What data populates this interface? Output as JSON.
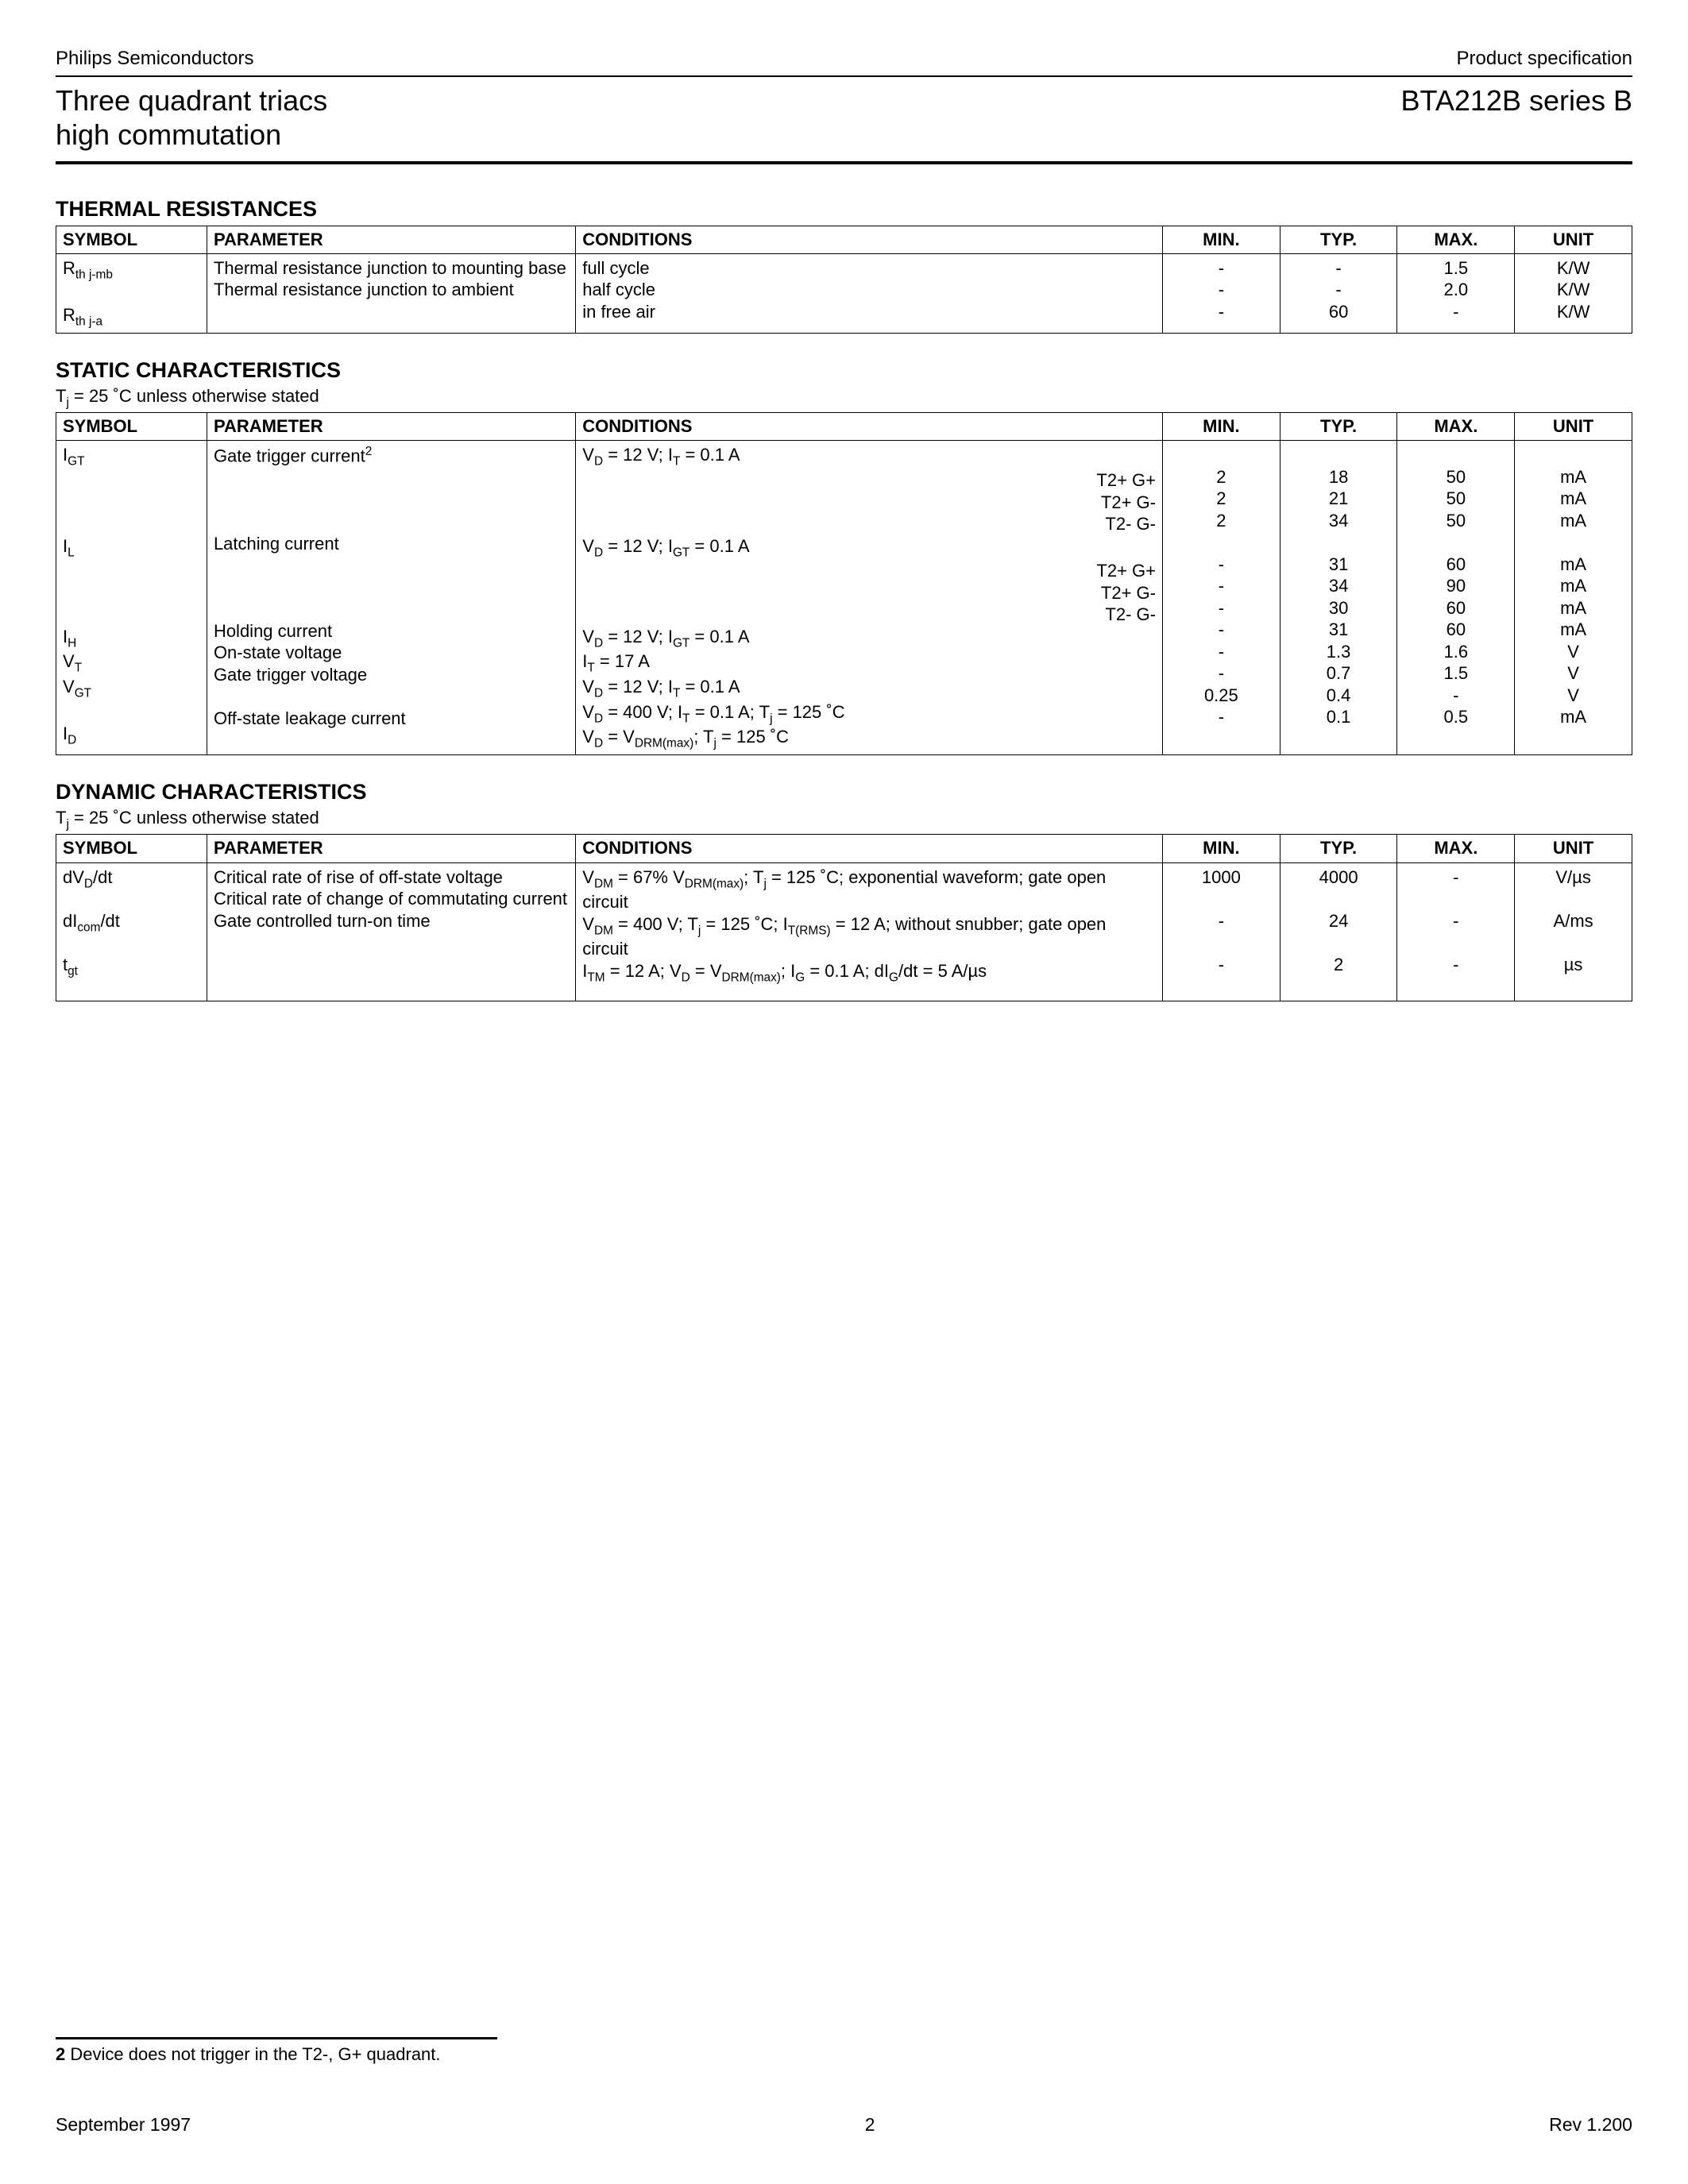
{
  "header": {
    "company": "Philips Semiconductors",
    "doctype": "Product specification",
    "title_line1": "Three quadrant triacs",
    "title_line2": "high commutation",
    "product": "BTA212B series B"
  },
  "sections": {
    "thermal": {
      "title": "THERMAL RESISTANCES",
      "headers": [
        "SYMBOL",
        "PARAMETER",
        "CONDITIONS",
        "MIN.",
        "TYP.",
        "MAX.",
        "UNIT"
      ],
      "rows": [
        {
          "sym_html": "R<sub>th j-mb</sub>",
          "param": "Thermal resistance junction to mounting base",
          "cond": "full cycle",
          "min": "-",
          "typ": "-",
          "max": "1.5",
          "unit": "K/W"
        },
        {
          "sym_html": "",
          "param": "",
          "cond": "half cycle",
          "min": "-",
          "typ": "-",
          "max": "2.0",
          "unit": "K/W"
        },
        {
          "sym_html": "R<sub>th j-a</sub>",
          "param": "Thermal resistance junction to ambient",
          "cond": "in free air",
          "min": "-",
          "typ": "60",
          "max": "-",
          "unit": "K/W"
        }
      ]
    },
    "static": {
      "title": "STATIC CHARACTERISTICS",
      "subnote_html": "T<sub>j</sub> = 25 ˚C unless otherwise stated",
      "headers": [
        "SYMBOL",
        "PARAMETER",
        "CONDITIONS",
        "MIN.",
        "TYP.",
        "MAX.",
        "UNIT"
      ],
      "rows": [
        {
          "sym_html": "I<sub>GT</sub>",
          "param_html": "Gate trigger current<sup>2</sup>",
          "cond_left_html": "V<sub>D</sub> = 12 V; I<sub>T</sub> = 0.1 A",
          "cond_right": "",
          "min": "",
          "typ": "",
          "max": "",
          "unit": ""
        },
        {
          "sym_html": "",
          "param_html": "",
          "cond_left_html": "",
          "cond_right": "T2+ G+",
          "min": "2",
          "typ": "18",
          "max": "50",
          "unit": "mA"
        },
        {
          "sym_html": "",
          "param_html": "",
          "cond_left_html": "",
          "cond_right": "T2+ G-",
          "min": "2",
          "typ": "21",
          "max": "50",
          "unit": "mA"
        },
        {
          "sym_html": "",
          "param_html": "",
          "cond_left_html": "",
          "cond_right": "T2- G-",
          "min": "2",
          "typ": "34",
          "max": "50",
          "unit": "mA"
        },
        {
          "sym_html": "I<sub>L</sub>",
          "param_html": "Latching current",
          "cond_left_html": "V<sub>D</sub> = 12 V; I<sub>GT</sub> = 0.1 A",
          "cond_right": "",
          "min": "",
          "typ": "",
          "max": "",
          "unit": ""
        },
        {
          "sym_html": "",
          "param_html": "",
          "cond_left_html": "",
          "cond_right": "T2+ G+",
          "min": "-",
          "typ": "31",
          "max": "60",
          "unit": "mA"
        },
        {
          "sym_html": "",
          "param_html": "",
          "cond_left_html": "",
          "cond_right": "T2+ G-",
          "min": "-",
          "typ": "34",
          "max": "90",
          "unit": "mA"
        },
        {
          "sym_html": "",
          "param_html": "",
          "cond_left_html": "",
          "cond_right": "T2- G-",
          "min": "-",
          "typ": "30",
          "max": "60",
          "unit": "mA"
        },
        {
          "sym_html": "I<sub>H</sub>",
          "param_html": "Holding current",
          "cond_left_html": "V<sub>D</sub> = 12 V; I<sub>GT</sub> = 0.1 A",
          "cond_right": "",
          "min": "-",
          "typ": "31",
          "max": "60",
          "unit": "mA"
        },
        {
          "sym_html": "V<sub>T</sub>",
          "param_html": "On-state voltage",
          "cond_left_html": "I<sub>T</sub> = 17 A",
          "cond_right": "",
          "min": "-",
          "typ": "1.3",
          "max": "1.6",
          "unit": "V"
        },
        {
          "sym_html": "V<sub>GT</sub>",
          "param_html": "Gate trigger voltage",
          "cond_left_html": "V<sub>D</sub> = 12 V; I<sub>T</sub> = 0.1 A",
          "cond_right": "",
          "min": "-",
          "typ": "0.7",
          "max": "1.5",
          "unit": "V"
        },
        {
          "sym_html": "",
          "param_html": "",
          "cond_left_html": "V<sub>D</sub> = 400 V; I<sub>T</sub> = 0.1 A; T<sub>j</sub> = 125 ˚C",
          "cond_right": "",
          "min": "0.25",
          "typ": "0.4",
          "max": "-",
          "unit": "V"
        },
        {
          "sym_html": "I<sub>D</sub>",
          "param_html": "Off-state leakage current",
          "cond_left_html": "V<sub>D</sub> = V<sub>DRM(max)</sub>; T<sub>j</sub> = 125 ˚C",
          "cond_right": "",
          "min": "-",
          "typ": "0.1",
          "max": "0.5",
          "unit": "mA"
        }
      ]
    },
    "dynamic": {
      "title": "DYNAMIC CHARACTERISTICS",
      "subnote_html": "T<sub>j</sub> = 25 ˚C unless otherwise stated",
      "headers": [
        "SYMBOL",
        "PARAMETER",
        "CONDITIONS",
        "MIN.",
        "TYP.",
        "MAX.",
        "UNIT"
      ],
      "rows": [
        {
          "sym_html": "dV<sub>D</sub>/dt",
          "param_html": "Critical rate of rise of off-state voltage",
          "cond_html": "V<sub>DM</sub> = 67% V<sub>DRM(max)</sub>; T<sub>j</sub> = 125 ˚C; exponential waveform; gate open circuit",
          "min": "1000",
          "typ": "4000",
          "max": "-",
          "unit": "V/µs"
        },
        {
          "sym_html": "dI<sub>com</sub>/dt",
          "param_html": "Critical rate of change of commutating current",
          "cond_html": "V<sub>DM</sub> = 400 V; T<sub>j</sub> = 125 ˚C; I<sub>T(RMS)</sub> = 12 A; without snubber; gate open circuit",
          "min": "-",
          "typ": "24",
          "max": "-",
          "unit": "A/ms"
        },
        {
          "sym_html": "t<sub>gt</sub>",
          "param_html": "Gate controlled turn-on time",
          "cond_html": "I<sub>TM</sub> = 12 A; V<sub>D</sub> = V<sub>DRM(max)</sub>; I<sub>G</sub> = 0.1 A; dI<sub>G</sub>/dt = 5 A/µs",
          "min": "-",
          "typ": "2",
          "max": "-",
          "unit": "µs"
        }
      ]
    }
  },
  "footnote": {
    "num": "2",
    "text": "Device does not trigger in the T2-, G+ quadrant."
  },
  "footer": {
    "date": "September 1997",
    "page": "2",
    "rev": "Rev 1.200"
  }
}
